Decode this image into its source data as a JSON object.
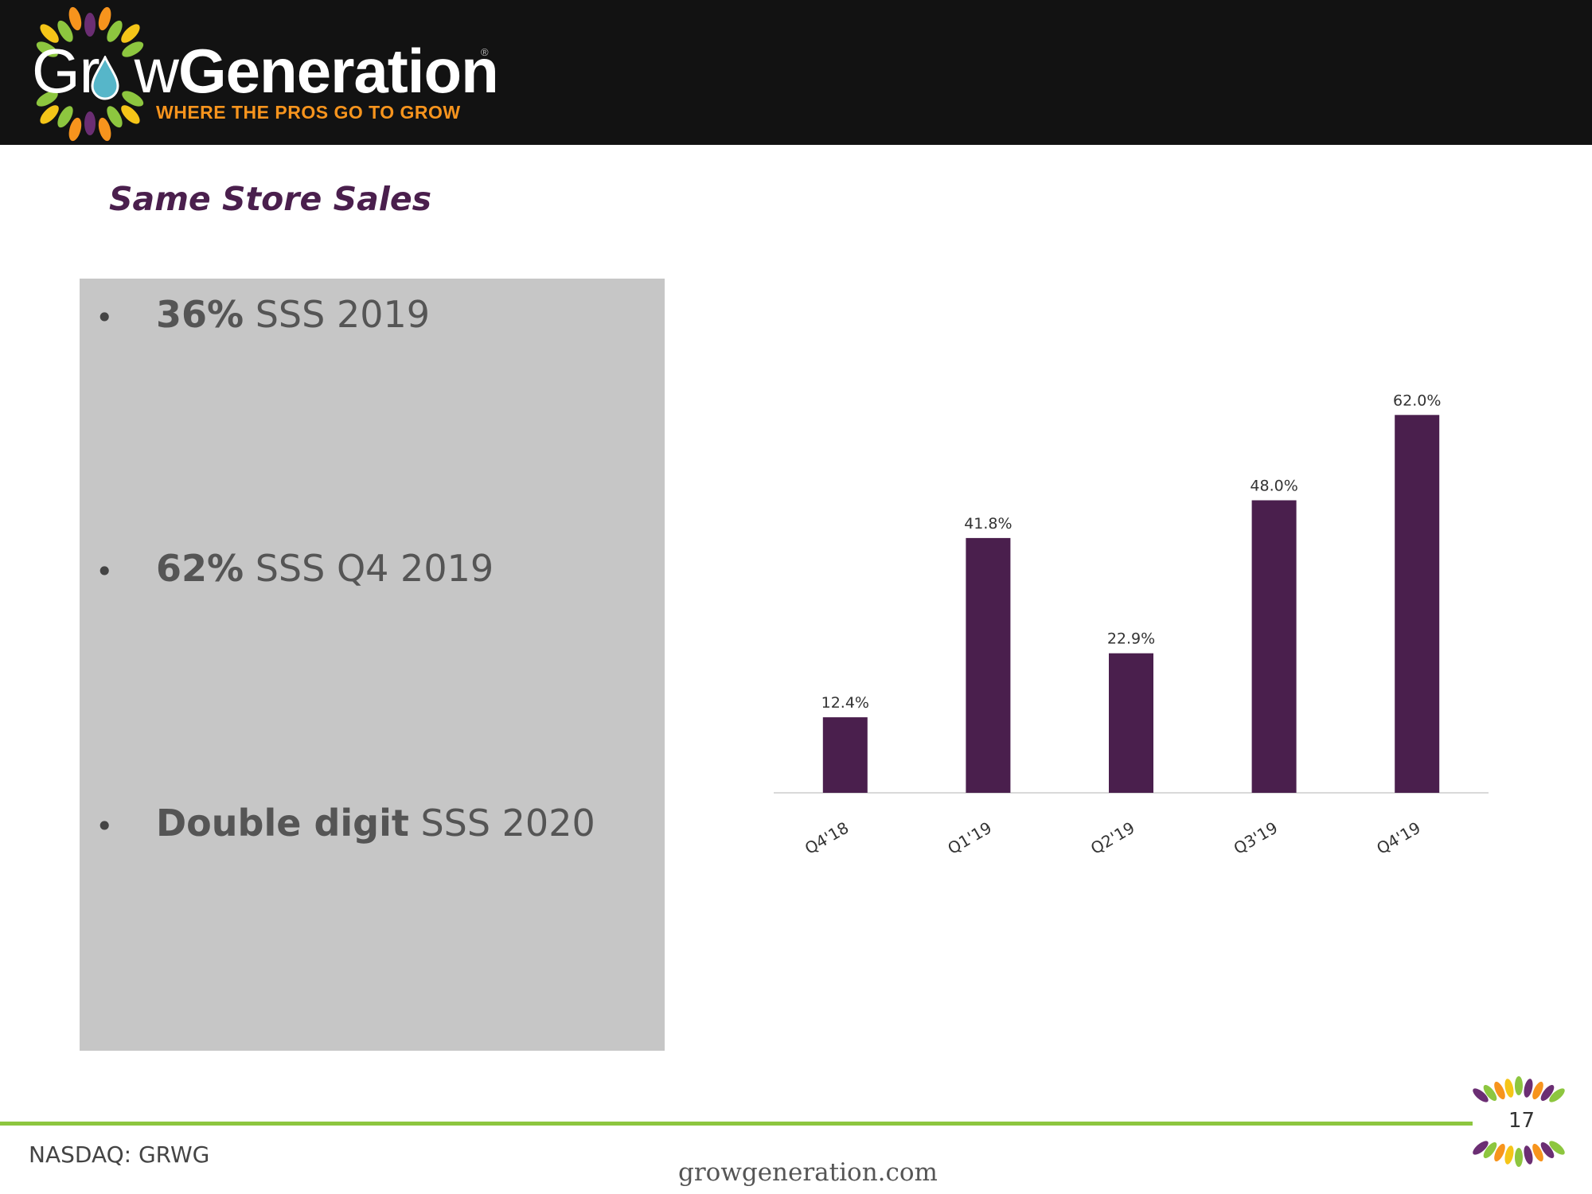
{
  "header": {
    "logo_word_thin": "Gr",
    "logo_word_thin2": "w",
    "logo_word_bold": "Generation",
    "logo_reg": "®",
    "tagline": "WHERE THE PROS GO TO GROW",
    "logo_icon": "sunburst-leaf-icon",
    "colors": {
      "purple": "#6b2e73",
      "green": "#8dc63f",
      "orange": "#f7941d",
      "yellow": "#f5c518",
      "drop": "#56b6c9"
    }
  },
  "title": "Same Store Sales",
  "bullets": [
    {
      "strong": "36%",
      "rest": " SSS 2019"
    },
    {
      "strong": "62%",
      "rest": " SSS Q4 2019"
    },
    {
      "strong": "Double digit",
      "rest": " SSS 2020"
    }
  ],
  "chart_data": {
    "type": "bar",
    "categories": [
      "Q4'18",
      "Q1'19",
      "Q2'19",
      "Q3'19",
      "Q4'19"
    ],
    "values": [
      12.4,
      41.8,
      22.9,
      48.0,
      62.0
    ],
    "data_labels": [
      "12.4%",
      "41.8%",
      "22.9%",
      "48.0%",
      "62.0%"
    ],
    "title": "",
    "xlabel": "",
    "ylabel": "",
    "ylim": [
      0,
      70
    ],
    "grid": false,
    "legend": "none",
    "bar_color": "#4a1f4d",
    "axis_color": "#d9d9d9"
  },
  "footer": {
    "ticker": "NASDAQ: GRWG",
    "website": "growgeneration.com",
    "page_number": "17",
    "accent": "#8dc63f"
  }
}
